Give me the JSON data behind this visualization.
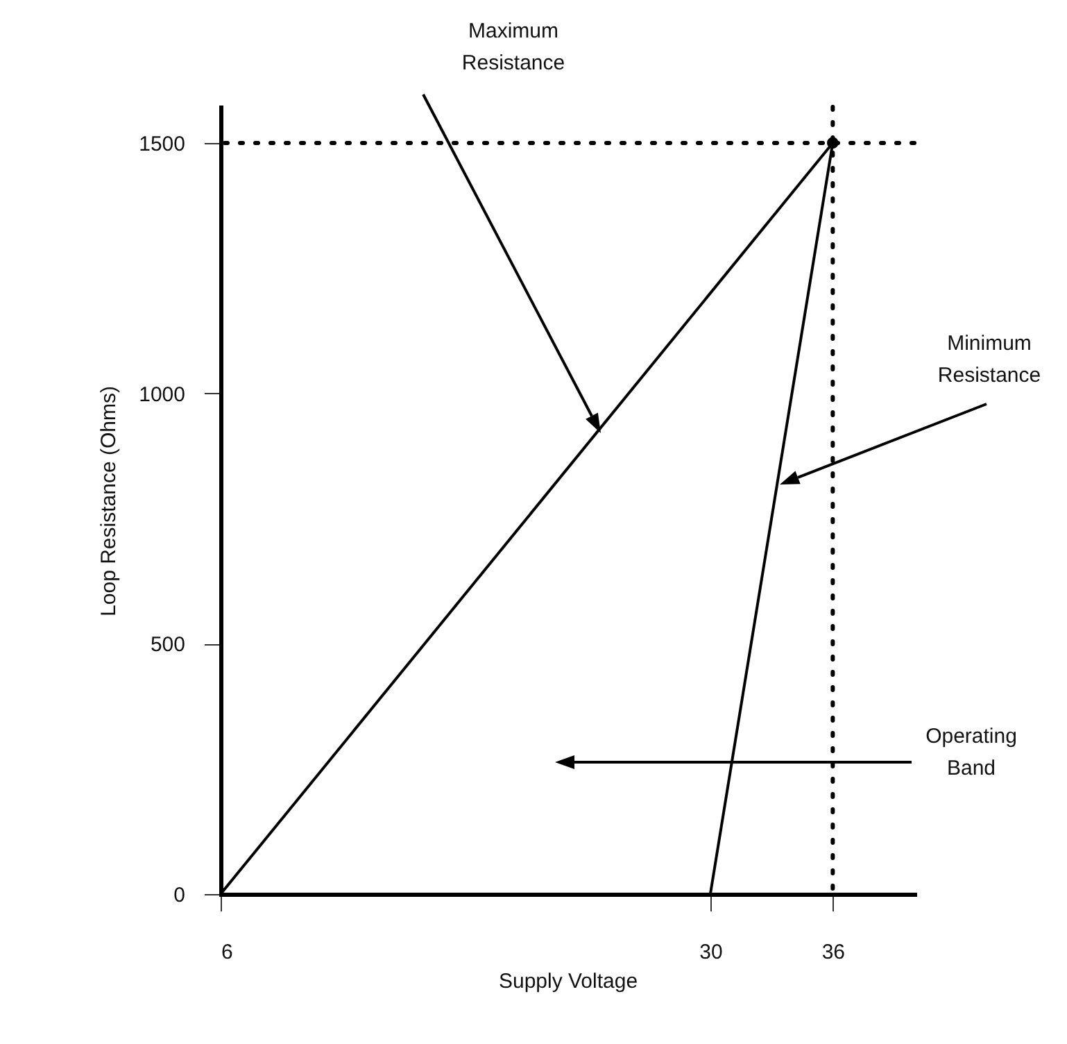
{
  "chart_data": {
    "type": "line",
    "xlabel": "Supply Voltage",
    "ylabel": "Loop Resistance (Ohms)",
    "xlim": [
      6,
      40
    ],
    "ylim": [
      0,
      1572
    ],
    "xticks": [
      6,
      30,
      36
    ],
    "yticks": [
      0,
      500,
      1000,
      1500
    ],
    "grid": false,
    "series": [
      {
        "color": "#000000",
        "x": [
          6,
          36
        ],
        "values": [
          0,
          1500
        ]
      },
      {
        "color": "#000000",
        "x": [
          30,
          36
        ],
        "values": [
          0,
          1500
        ]
      },
      {
        "type": "scatter",
        "color": "#000000",
        "x": [
          36
        ],
        "values": [
          1500
        ],
        "marker": "circle"
      }
    ],
    "ref_lines": [
      {
        "axis": "y",
        "value": 1500,
        "line_style": "dotted",
        "color": "#000000"
      },
      {
        "axis": "x",
        "value": 36,
        "line_style": "dotted",
        "color": "#000000"
      }
    ],
    "annotations": [
      "Maximum Resistance",
      "Minimum Resistance",
      "Operating Band"
    ]
  }
}
